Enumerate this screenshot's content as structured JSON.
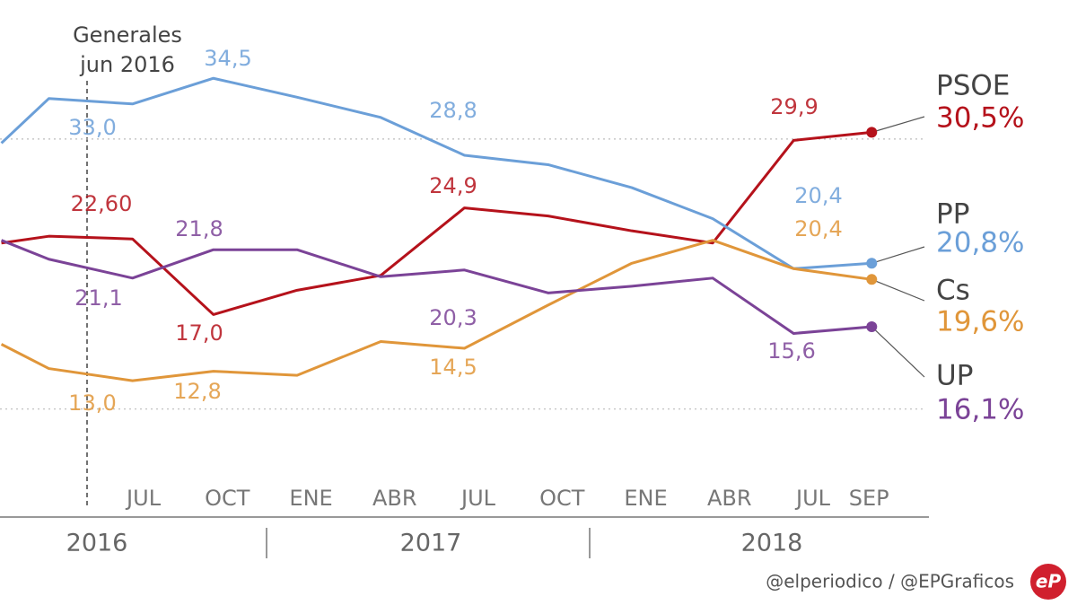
{
  "chart_data": {
    "type": "line",
    "annotation": [
      "Generales",
      "jun 2016"
    ],
    "x": [
      1.9,
      3.6,
      6.6,
      9.5,
      12.5,
      15.5,
      18.5,
      21.5,
      24.5,
      27.4,
      30.3,
      33.1
    ],
    "xlim": [
      1.85,
      35.15
    ],
    "xticks": [
      {
        "value": 7,
        "label": "JUL"
      },
      {
        "value": 10,
        "label": "OCT"
      },
      {
        "value": 13,
        "label": "ENE"
      },
      {
        "value": 16,
        "label": "ABR"
      },
      {
        "value": 19,
        "label": "JUL"
      },
      {
        "value": 22,
        "label": "OCT"
      },
      {
        "value": 25,
        "label": "ENE"
      },
      {
        "value": 28,
        "label": "ABR"
      },
      {
        "value": 31,
        "label": "JUL"
      },
      {
        "value": 33,
        "label": "SEP"
      }
    ],
    "year_labels": [
      "2016",
      "2017",
      "2018"
    ],
    "ylim": [
      2,
      40.3
    ],
    "yticks": [
      10,
      30
    ],
    "grid": true,
    "series": [
      {
        "name": "PSOE",
        "color": "#b5121b",
        "values": [
          22.3,
          22.8,
          22.6,
          17.0,
          18.8,
          19.9,
          24.9,
          24.3,
          23.2,
          22.3,
          29.9,
          30.5
        ],
        "value_labels": [
          null,
          null,
          "22,60",
          "17,0",
          null,
          null,
          "24,9",
          null,
          null,
          null,
          "29,9",
          "30,5%"
        ]
      },
      {
        "name": "PP",
        "color": "#6b9fd8",
        "values": [
          29.7,
          33.0,
          32.6,
          34.5,
          33.1,
          31.6,
          28.8,
          28.1,
          26.4,
          24.1,
          20.4,
          20.8
        ],
        "value_labels": [
          null,
          "33,0",
          null,
          "34,5",
          null,
          null,
          "28,8",
          null,
          null,
          null,
          "20,4",
          "20,8%"
        ]
      },
      {
        "name": "Cs",
        "color": "#e0963a",
        "values": [
          14.8,
          13.0,
          12.1,
          12.8,
          12.5,
          15.0,
          14.5,
          17.7,
          20.8,
          22.5,
          20.4,
          19.6
        ],
        "value_labels": [
          null,
          "13,0",
          null,
          "12,8",
          null,
          null,
          "14,5",
          null,
          null,
          null,
          "20,4",
          "19,6%"
        ]
      },
      {
        "name": "UP",
        "color": "#7b4397",
        "values": [
          22.5,
          21.1,
          19.7,
          21.8,
          21.8,
          19.8,
          20.3,
          18.6,
          19.1,
          19.7,
          15.6,
          16.1
        ],
        "value_labels": [
          null,
          "21,1",
          null,
          "21,8",
          null,
          null,
          "20,3",
          null,
          null,
          null,
          "15,6",
          "16,1%"
        ]
      }
    ],
    "source": "@elperiodico / @EPGraficos",
    "logo": "eP"
  }
}
